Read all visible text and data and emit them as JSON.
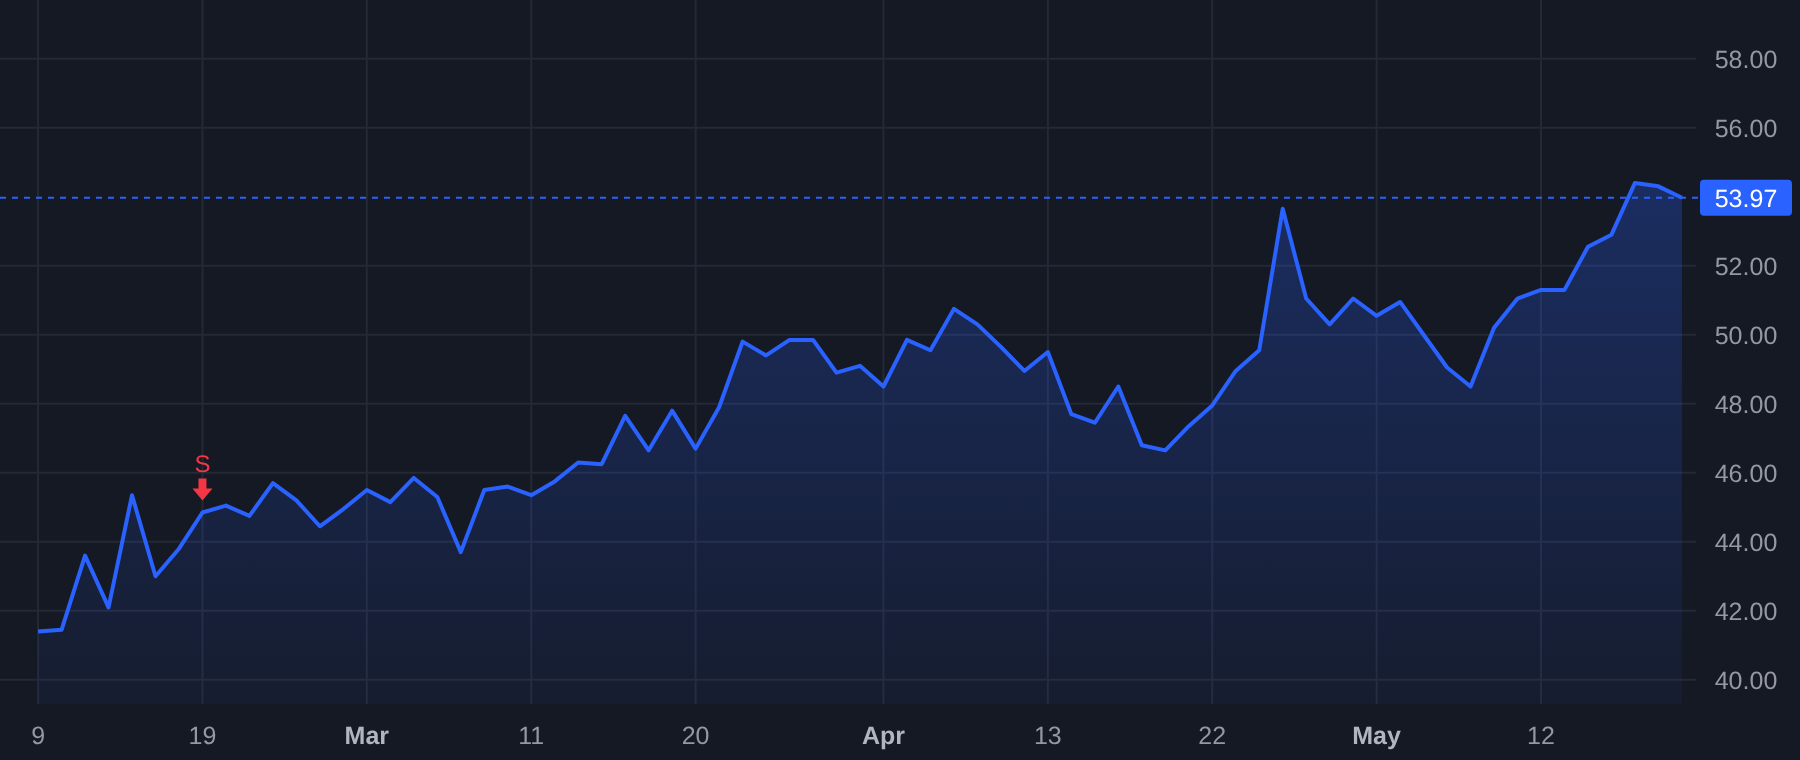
{
  "chart_data": {
    "type": "area",
    "categories": [
      "9",
      null,
      null,
      null,
      null,
      null,
      null,
      "19",
      null,
      null,
      null,
      null,
      null,
      null,
      "Mar",
      null,
      null,
      null,
      null,
      null,
      null,
      "11",
      null,
      null,
      null,
      null,
      null,
      null,
      "20",
      null,
      null,
      null,
      null,
      null,
      null,
      null,
      "Apr",
      null,
      null,
      null,
      null,
      null,
      null,
      "13",
      null,
      null,
      null,
      null,
      null,
      null,
      "22",
      null,
      null,
      null,
      null,
      null,
      null,
      "May",
      null,
      null,
      null,
      null,
      null,
      null,
      "12",
      null,
      null,
      null,
      null,
      null,
      null
    ],
    "series": [
      {
        "color": "#2962ff",
        "values": [
          41.4,
          41.45,
          43.6,
          42.1,
          45.35,
          43.0,
          43.8,
          44.85,
          45.05,
          44.75,
          45.7,
          45.2,
          44.45,
          44.95,
          45.5,
          45.15,
          45.85,
          45.3,
          43.7,
          45.5,
          45.6,
          45.35,
          45.75,
          46.3,
          46.25,
          47.65,
          46.65,
          47.8,
          46.7,
          47.9,
          49.8,
          49.4,
          49.85,
          49.85,
          48.9,
          49.1,
          48.5,
          49.85,
          49.55,
          50.75,
          50.3,
          49.65,
          48.95,
          49.5,
          47.7,
          47.45,
          48.5,
          46.8,
          46.65,
          47.35,
          47.95,
          48.95,
          49.55,
          53.65,
          51.05,
          50.3,
          51.05,
          50.55,
          50.95,
          50.0,
          49.05,
          48.5,
          50.2,
          51.05,
          51.3,
          51.3,
          52.55,
          52.9,
          54.4,
          54.3,
          53.97
        ]
      }
    ],
    "ylim": [
      39.3,
      59.7
    ],
    "yticks": [
      {
        "value": 40,
        "label": "40.00"
      },
      {
        "value": 42,
        "label": "42.00"
      },
      {
        "value": 44,
        "label": "44.00"
      },
      {
        "value": 46,
        "label": "46.00"
      },
      {
        "value": 48,
        "label": "48.00"
      },
      {
        "value": 50,
        "label": "50.00"
      },
      {
        "value": 52,
        "label": "52.00"
      },
      {
        "value": 56,
        "label": "56.00"
      },
      {
        "value": 58,
        "label": "58.00"
      }
    ],
    "ref_lines": [
      {
        "axis": "y",
        "value": 53.97,
        "label": "53.97",
        "color": "#2962ff",
        "line_style": "dashed"
      }
    ],
    "annotations": [
      {
        "text": "S",
        "x": "19",
        "y": 44.85
      }
    ],
    "grid": true,
    "marker": "none",
    "line_style": "solid"
  }
}
